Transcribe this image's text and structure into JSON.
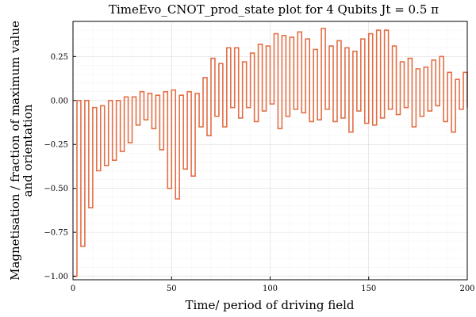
{
  "chart_data": {
    "type": "line",
    "step": true,
    "title": "TimeEvo_CNOT_prod_state plot for 4 Qubits Jt = 0.5 π",
    "xlabel": "Time/ period of driving field",
    "ylabel_lines": [
      "Magnetisation / fraction of maximum value",
      "and orientation"
    ],
    "xlim": [
      0,
      200
    ],
    "ylim": [
      -1.02,
      0.45
    ],
    "xticks": [
      0,
      50,
      100,
      150,
      200
    ],
    "xtick_labels": [
      "0",
      "50",
      "100",
      "150",
      "200"
    ],
    "yticks": [
      -1.0,
      -0.75,
      -0.5,
      -0.25,
      0.0,
      0.25
    ],
    "ytick_labels": [
      "−1.00",
      "−0.75",
      "−0.50",
      "−0.25",
      "0.00",
      "0.25"
    ],
    "grid": true,
    "minor_grid": true,
    "legend": "none",
    "series": [
      {
        "color": "#e26f46",
        "x": [
          0,
          2,
          4,
          6,
          8,
          10,
          12,
          14,
          16,
          18,
          20,
          22,
          24,
          26,
          28,
          30,
          32,
          34,
          36,
          38,
          40,
          42,
          44,
          46,
          48,
          50,
          52,
          54,
          56,
          58,
          60,
          62,
          64,
          66,
          68,
          70,
          72,
          74,
          76,
          78,
          80,
          82,
          84,
          86,
          88,
          90,
          92,
          94,
          96,
          98,
          100,
          102,
          104,
          106,
          108,
          110,
          112,
          114,
          116,
          118,
          120,
          122,
          124,
          126,
          128,
          130,
          132,
          134,
          136,
          138,
          140,
          142,
          144,
          146,
          148,
          150,
          152,
          154,
          156,
          158,
          160,
          162,
          164,
          166,
          168,
          170,
          172,
          174,
          176,
          178,
          180,
          182,
          184,
          186,
          188,
          190,
          192,
          194,
          196,
          198,
          200
        ],
        "y": [
          -1.0,
          0.0,
          -0.83,
          0.0,
          -0.61,
          -0.04,
          -0.4,
          -0.03,
          -0.37,
          0.0,
          -0.34,
          0.0,
          -0.29,
          0.02,
          -0.24,
          0.02,
          -0.14,
          0.05,
          -0.11,
          0.04,
          -0.16,
          0.03,
          -0.28,
          0.05,
          -0.5,
          0.06,
          -0.56,
          0.03,
          -0.39,
          0.05,
          -0.43,
          0.04,
          -0.15,
          0.13,
          -0.2,
          0.24,
          -0.09,
          0.21,
          -0.15,
          0.3,
          -0.04,
          0.3,
          -0.1,
          0.22,
          -0.04,
          0.27,
          -0.12,
          0.32,
          -0.06,
          0.31,
          -0.02,
          0.38,
          -0.16,
          0.37,
          -0.09,
          0.36,
          -0.05,
          0.39,
          -0.07,
          0.35,
          -0.12,
          0.29,
          -0.11,
          0.41,
          -0.05,
          0.31,
          -0.12,
          0.34,
          -0.1,
          0.3,
          -0.18,
          0.28,
          -0.06,
          0.35,
          -0.13,
          0.38,
          -0.14,
          0.4,
          -0.1,
          0.4,
          -0.05,
          0.31,
          -0.08,
          0.22,
          -0.04,
          0.24,
          -0.15,
          0.18,
          -0.09,
          0.19,
          -0.06,
          0.23,
          -0.03,
          0.25,
          -0.12,
          0.16,
          -0.18,
          0.12,
          -0.05,
          0.16,
          -0.04
        ]
      }
    ]
  }
}
